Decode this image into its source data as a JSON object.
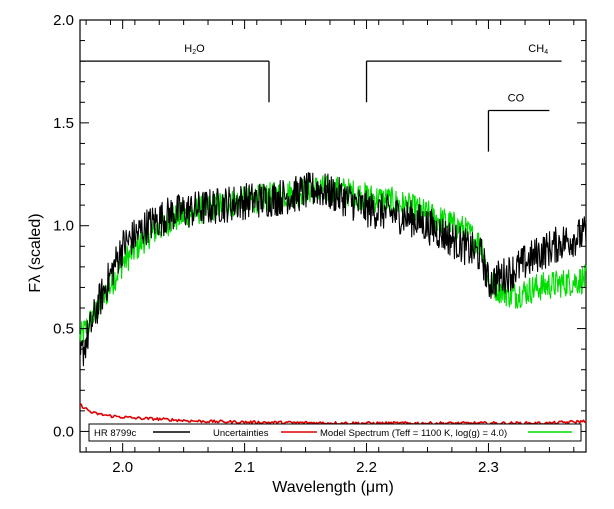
{
  "chart_data": {
    "type": "line",
    "xlabel": "Wavelength (μm)",
    "ylabel": "Fλ (scaled)",
    "xlim": [
      1.965,
      2.38
    ],
    "ylim": [
      -0.1,
      2.0
    ],
    "xticks": [
      2.0,
      2.1,
      2.2,
      2.3
    ],
    "xtick_labels": [
      "2.0",
      "2.1",
      "2.2",
      "2.3"
    ],
    "yticks": [
      0.0,
      0.5,
      1.0,
      1.5,
      2.0
    ],
    "ytick_labels": [
      "0.0",
      "0.5",
      "1.0",
      "1.5",
      "2.0"
    ],
    "grid": false,
    "legend_position": "bottom",
    "colors": {
      "data": "#000000",
      "uncertainty": "#dd0000",
      "model": "#00dd00"
    },
    "series": [
      {
        "name": "HR 8799c",
        "color": "#000000",
        "x": [
          1.965,
          1.98,
          2.0,
          2.02,
          2.04,
          2.06,
          2.08,
          2.1,
          2.12,
          2.14,
          2.16,
          2.18,
          2.2,
          2.22,
          2.24,
          2.26,
          2.28,
          2.295,
          2.3,
          2.32,
          2.34,
          2.36,
          2.38
        ],
        "y": [
          0.35,
          0.62,
          0.9,
          1.0,
          1.06,
          1.08,
          1.1,
          1.12,
          1.13,
          1.15,
          1.18,
          1.14,
          1.08,
          1.06,
          1.03,
          0.97,
          0.9,
          0.85,
          0.72,
          0.78,
          0.86,
          0.92,
          0.96
        ],
        "scatter": 0.09
      },
      {
        "name": "Uncertainties",
        "color": "#dd0000",
        "x": [
          1.965,
          1.975,
          1.99,
          2.01,
          2.03,
          2.06,
          2.1,
          2.15,
          2.2,
          2.25,
          2.3,
          2.35,
          2.38
        ],
        "y": [
          0.13,
          0.09,
          0.075,
          0.065,
          0.06,
          0.05,
          0.045,
          0.042,
          0.04,
          0.04,
          0.04,
          0.04,
          0.05
        ],
        "scatter": 0.007
      },
      {
        "name": "Model Spectrum (Teff = 1100 K, log(g) = 4.0)",
        "color": "#00dd00",
        "x": [
          1.965,
          1.98,
          2.0,
          2.02,
          2.04,
          2.06,
          2.08,
          2.1,
          2.12,
          2.14,
          2.16,
          2.18,
          2.2,
          2.22,
          2.24,
          2.26,
          2.28,
          2.295,
          2.3,
          2.32,
          2.34,
          2.36,
          2.38
        ],
        "y": [
          0.45,
          0.6,
          0.82,
          0.95,
          1.03,
          1.07,
          1.1,
          1.12,
          1.14,
          1.16,
          1.18,
          1.17,
          1.14,
          1.12,
          1.08,
          1.03,
          0.98,
          0.9,
          0.72,
          0.66,
          0.7,
          0.72,
          0.74
        ],
        "scatter": 0.07
      }
    ],
    "annotations": [
      {
        "label": "H",
        "sub": "2",
        "suffix": "O",
        "x_from": 1.965,
        "x_to": 2.12,
        "y_bar": 1.8,
        "y_tick_end": 1.6,
        "tick_side": "right"
      },
      {
        "label": "CH",
        "sub": "4",
        "suffix": "",
        "x_from": 2.2,
        "x_to": 2.36,
        "y_bar": 1.8,
        "y_tick_end": 1.6,
        "tick_side": "left"
      },
      {
        "label": "CO",
        "sub": "",
        "suffix": "",
        "x_from": 2.3,
        "x_to": 2.35,
        "y_bar": 1.56,
        "y_tick_end": 1.36,
        "tick_side": "left"
      }
    ]
  }
}
